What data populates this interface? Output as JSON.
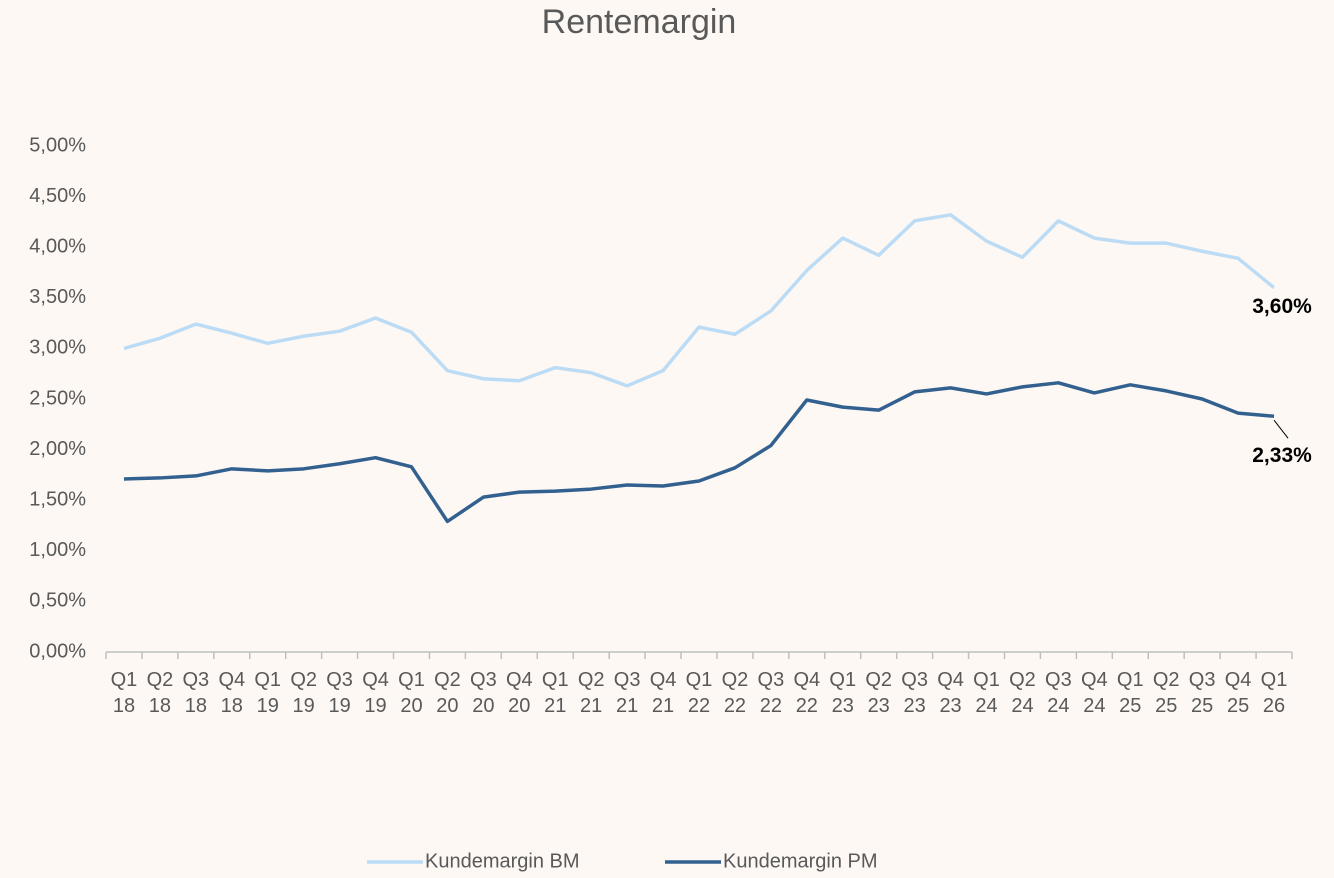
{
  "chart_data": {
    "type": "line",
    "title": "Rentemargin",
    "categories": [
      "Q1 18",
      "Q2 18",
      "Q3 18",
      "Q4 18",
      "Q1 19",
      "Q2 19",
      "Q3 19",
      "Q4 19",
      "Q1 20",
      "Q2 20",
      "Q3 20",
      "Q4 20",
      "Q1 21",
      "Q2 21",
      "Q3 21",
      "Q4 21",
      "Q1 22",
      "Q2 22",
      "Q3 22",
      "Q4 22",
      "Q1 23",
      "Q2 23",
      "Q3 23",
      "Q4 23",
      "Q1 24",
      "Q2 24",
      "Q3 24",
      "Q4 24",
      "Q1 25",
      "Q2 25",
      "Q3 25",
      "Q4 25",
      "Q1 26"
    ],
    "series": [
      {
        "name": "Kundemargin BM",
        "color": "#bcdcf5",
        "values": [
          3.0,
          3.1,
          3.24,
          3.15,
          3.05,
          3.12,
          3.17,
          3.3,
          3.16,
          2.78,
          2.7,
          2.68,
          2.81,
          2.76,
          2.63,
          2.78,
          3.21,
          3.14,
          3.37,
          3.77,
          4.09,
          3.92,
          4.26,
          4.32,
          4.06,
          3.9,
          4.26,
          4.09,
          4.04,
          4.04,
          3.96,
          3.89,
          3.6
        ],
        "value_labels": [
          null,
          null,
          null,
          null,
          null,
          null,
          null,
          null,
          null,
          null,
          null,
          null,
          null,
          null,
          null,
          null,
          null,
          null,
          null,
          null,
          null,
          null,
          null,
          null,
          null,
          null,
          null,
          null,
          null,
          null,
          null,
          null,
          "3,60%"
        ]
      },
      {
        "name": "Kundemargin PM",
        "color": "#33618f",
        "values": [
          1.71,
          1.72,
          1.74,
          1.81,
          1.79,
          1.81,
          1.86,
          1.92,
          1.83,
          1.29,
          1.53,
          1.58,
          1.59,
          1.61,
          1.65,
          1.64,
          1.69,
          1.82,
          2.04,
          2.49,
          2.42,
          2.39,
          2.57,
          2.61,
          2.55,
          2.62,
          2.66,
          2.56,
          2.64,
          2.58,
          2.5,
          2.36,
          2.33
        ],
        "value_labels": [
          null,
          null,
          null,
          null,
          null,
          null,
          null,
          null,
          null,
          null,
          null,
          null,
          null,
          null,
          null,
          null,
          null,
          null,
          null,
          null,
          null,
          null,
          null,
          null,
          null,
          null,
          null,
          null,
          null,
          null,
          null,
          null,
          "2,33%"
        ]
      }
    ],
    "ylim": [
      0,
      5
    ],
    "yticks": [
      {
        "value": 0,
        "label": "0,00%"
      },
      {
        "value": 0.5,
        "label": "0,50%"
      },
      {
        "value": 1,
        "label": "1,00%"
      },
      {
        "value": 1.5,
        "label": "1,50%"
      },
      {
        "value": 2,
        "label": "2,00%"
      },
      {
        "value": 2.5,
        "label": "2,50%"
      },
      {
        "value": 3,
        "label": "3,00%"
      },
      {
        "value": 3.5,
        "label": "3,50%"
      },
      {
        "value": 4,
        "label": "4,00%"
      },
      {
        "value": 4.5,
        "label": "4,50%"
      },
      {
        "value": 5,
        "label": "5,00%"
      }
    ],
    "grid": false,
    "legend": "bottom"
  }
}
